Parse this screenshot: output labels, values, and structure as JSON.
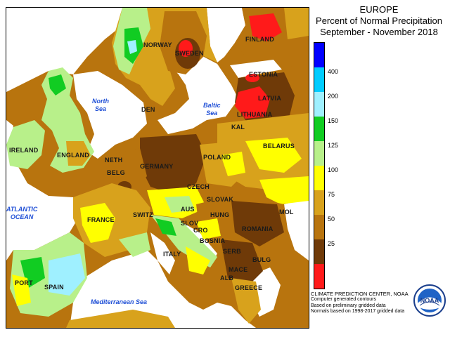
{
  "title": {
    "region": "EUROPE",
    "line1": "Percent of Normal Precipitation",
    "line2": "September - November 2018"
  },
  "legend": {
    "colors": {
      "above_400": "#0000ff",
      "200_400": "#00ccff",
      "150_200": "#9ff0ff",
      "125_150": "#11cc22",
      "100_125": "#b8f08a",
      "75_100": "#ffff00",
      "50_75": "#d8a21c",
      "25_50": "#b8740e",
      "0_25_brown": "#6f3a08",
      "below_25": "#ff1a1a"
    },
    "ticks": [
      "400",
      "200",
      "150",
      "125",
      "100",
      "75",
      "50",
      "25"
    ]
  },
  "places": {
    "norway": "NORWAY",
    "sweden": "SWEDEN",
    "finland": "FINLAND",
    "estonia": "ESTONIA",
    "latvia": "LATVIA",
    "lithuania": "LITHUANIA",
    "kal": "KAL",
    "belarus": "BELARUS",
    "den": "DEN",
    "ireland": "IRELAND",
    "england": "ENGLAND",
    "neth": "NETH",
    "belg": "BELG",
    "germany": "GERMANY",
    "poland": "POLAND",
    "czech": "CZECH",
    "slovak": "SLOVAK",
    "aus": "AUS",
    "hung": "HUNG",
    "mol": "MOL",
    "romania": "ROMANIA",
    "switz": "SWITZ",
    "slov": "SLOV",
    "cro": "CRO",
    "bosnia": "BOSNIA",
    "serb": "SERB",
    "bulg": "BULG",
    "mace": "MACE",
    "alb": "ALB",
    "greece": "GREECE",
    "france": "FRANCE",
    "italy": "ITALY",
    "port": "PORT",
    "spain": "SPAIN"
  },
  "seas": {
    "north_sea_1": "North",
    "north_sea_2": "Sea",
    "baltic_sea_1": "Baltic",
    "baltic_sea_2": "Sea",
    "atlantic_1": "ATLANTIC",
    "atlantic_2": "OCEAN",
    "mediterranean": "Mediterranean Sea"
  },
  "credits": {
    "line1": "CLIMATE PREDICTION CENTER, NOAA",
    "line2": "Computer generated contours",
    "line3": "Based on preliminary gridded data",
    "line4": "Normals based on 1998-2017 gridded data"
  },
  "logo": {
    "text": "NOAA"
  }
}
